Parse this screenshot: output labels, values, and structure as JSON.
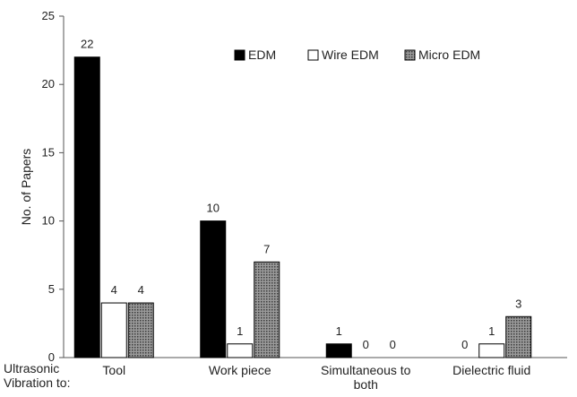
{
  "chart_data": {
    "type": "bar",
    "title": "",
    "ylabel": "No. of Papers",
    "xlabel": "Ultrasonic Vibration to:",
    "xlabel_lines": [
      "Ultrasonic",
      "Vibration to:"
    ],
    "ylim": [
      0,
      25
    ],
    "yticks": [
      0,
      5,
      10,
      15,
      20,
      25
    ],
    "categories": [
      "Tool",
      "Work piece",
      "Simultaneous to both",
      "Dielectric fluid"
    ],
    "category_lines": [
      [
        "Tool"
      ],
      [
        "Work piece"
      ],
      [
        "Simultaneous to",
        "both"
      ],
      [
        "Dielectric fluid"
      ]
    ],
    "series": [
      {
        "name": "EDM",
        "values": [
          22,
          10,
          1,
          0
        ],
        "fill": "#000000",
        "pattern": "solid"
      },
      {
        "name": "Wire EDM",
        "values": [
          4,
          1,
          0,
          1
        ],
        "fill": "#ffffff",
        "pattern": "solid"
      },
      {
        "name": "Micro EDM",
        "values": [
          4,
          7,
          0,
          3
        ],
        "fill": "#8c8c8c",
        "pattern": "dots"
      }
    ],
    "legend_position": "top-right",
    "grid": false
  }
}
